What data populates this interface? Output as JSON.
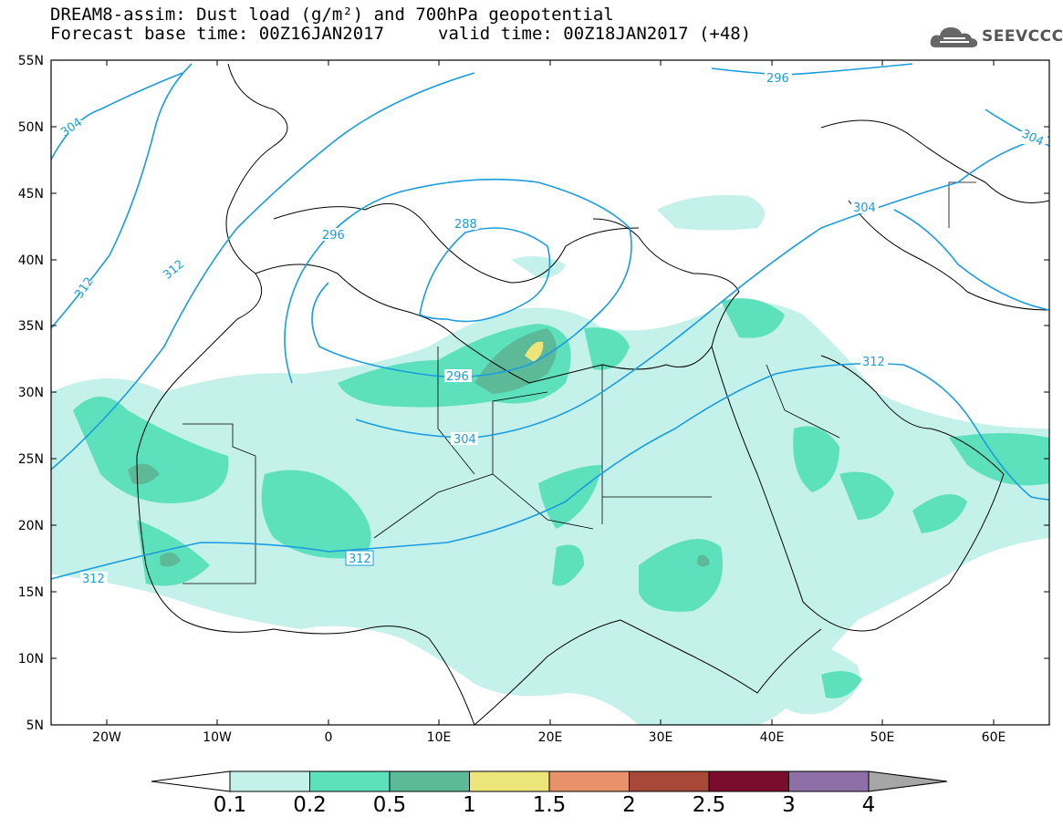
{
  "header": {
    "title_line1": "DREAM8-assim: Dust load (g/m²) and 700hPa geopotential",
    "forecast_base": "Forecast base time: 00Z16JAN2017",
    "valid_time": "valid time: 00Z18JAN2017 (+48)"
  },
  "logo": {
    "text": "SEEVCCC",
    "icon": "cloud-icon"
  },
  "map": {
    "lat_labels": [
      "55N",
      "50N",
      "45N",
      "40N",
      "35N",
      "30N",
      "25N",
      "20N",
      "15N",
      "10N",
      "5N"
    ],
    "lon_labels": [
      "20W",
      "10W",
      "0",
      "10E",
      "20E",
      "30E",
      "40E",
      "50E",
      "60E"
    ],
    "contour_labels": [
      "304",
      "312",
      "296",
      "288",
      "296",
      "304",
      "312",
      "296",
      "304",
      "312",
      "312"
    ]
  },
  "colorbar": {
    "colors": [
      "#c4f1ea",
      "#5de0bc",
      "#5cba99",
      "#ece57a",
      "#e8916b",
      "#a84838",
      "#7a0c2e",
      "#8e6fa8",
      "#a6a6a6"
    ],
    "labels": [
      "0.1",
      "0.2",
      "0.5",
      "1",
      "1.5",
      "2",
      "2.5",
      "3",
      "4"
    ]
  }
}
